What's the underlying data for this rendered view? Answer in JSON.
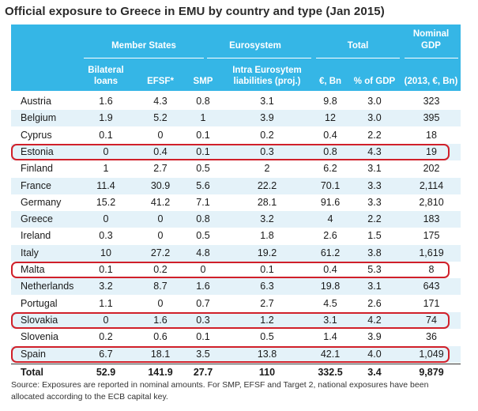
{
  "title": "Official exposure to Greece in EMU by country and type (Jan 2015)",
  "headers": {
    "member_states": "Member States",
    "eurosystem": "Eurosystem",
    "total": "Total",
    "nominal_gdp": "Nominal GDP",
    "bilateral_loans": "Bilateral loans",
    "efsf": "EFSF*",
    "smp": "SMP",
    "intra_eurosystem": "Intra Eurosytem liabilities (proj.)",
    "eur_bn": "€, Bn",
    "pct_gdp": "% of GDP",
    "gdp_2013": "(2013, €, Bn)"
  },
  "rows": [
    {
      "country": "Austria",
      "bilateral": "1.6",
      "efsf": "4.3",
      "smp": "0.8",
      "intra": "3.1",
      "eur_bn": "9.8",
      "pct_gdp": "3.0",
      "gdp": "323",
      "highlighted": false
    },
    {
      "country": "Belgium",
      "bilateral": "1.9",
      "efsf": "5.2",
      "smp": "1",
      "intra": "3.9",
      "eur_bn": "12",
      "pct_gdp": "3.0",
      "gdp": "395",
      "highlighted": false
    },
    {
      "country": "Cyprus",
      "bilateral": "0.1",
      "efsf": "0",
      "smp": "0.1",
      "intra": "0.2",
      "eur_bn": "0.4",
      "pct_gdp": "2.2",
      "gdp": "18",
      "highlighted": false
    },
    {
      "country": "Estonia",
      "bilateral": "0",
      "efsf": "0.4",
      "smp": "0.1",
      "intra": "0.3",
      "eur_bn": "0.8",
      "pct_gdp": "4.3",
      "gdp": "19",
      "highlighted": true
    },
    {
      "country": "Finland",
      "bilateral": "1",
      "efsf": "2.7",
      "smp": "0.5",
      "intra": "2",
      "eur_bn": "6.2",
      "pct_gdp": "3.1",
      "gdp": "202",
      "highlighted": false
    },
    {
      "country": "France",
      "bilateral": "11.4",
      "efsf": "30.9",
      "smp": "5.6",
      "intra": "22.2",
      "eur_bn": "70.1",
      "pct_gdp": "3.3",
      "gdp": "2,114",
      "highlighted": false
    },
    {
      "country": "Germany",
      "bilateral": "15.2",
      "efsf": "41.2",
      "smp": "7.1",
      "intra": "28.1",
      "eur_bn": "91.6",
      "pct_gdp": "3.3",
      "gdp": "2,810",
      "highlighted": false
    },
    {
      "country": "Greece",
      "bilateral": "0",
      "efsf": "0",
      "smp": "0.8",
      "intra": "3.2",
      "eur_bn": "4",
      "pct_gdp": "2.2",
      "gdp": "183",
      "highlighted": false
    },
    {
      "country": "Ireland",
      "bilateral": "0.3",
      "efsf": "0",
      "smp": "0.5",
      "intra": "1.8",
      "eur_bn": "2.6",
      "pct_gdp": "1.5",
      "gdp": "175",
      "highlighted": false
    },
    {
      "country": "Italy",
      "bilateral": "10",
      "efsf": "27.2",
      "smp": "4.8",
      "intra": "19.2",
      "eur_bn": "61.2",
      "pct_gdp": "3.8",
      "gdp": "1,619",
      "highlighted": false
    },
    {
      "country": "Malta",
      "bilateral": "0.1",
      "efsf": "0.2",
      "smp": "0",
      "intra": "0.1",
      "eur_bn": "0.4",
      "pct_gdp": "5.3",
      "gdp": "8",
      "highlighted": true
    },
    {
      "country": "Netherlands",
      "bilateral": "3.2",
      "efsf": "8.7",
      "smp": "1.6",
      "intra": "6.3",
      "eur_bn": "19.8",
      "pct_gdp": "3.1",
      "gdp": "643",
      "highlighted": false
    },
    {
      "country": "Portugal",
      "bilateral": "1.1",
      "efsf": "0",
      "smp": "0.7",
      "intra": "2.7",
      "eur_bn": "4.5",
      "pct_gdp": "2.6",
      "gdp": "171",
      "highlighted": false
    },
    {
      "country": "Slovakia",
      "bilateral": "0",
      "efsf": "1.6",
      "smp": "0.3",
      "intra": "1.2",
      "eur_bn": "3.1",
      "pct_gdp": "4.2",
      "gdp": "74",
      "highlighted": true
    },
    {
      "country": "Slovenia",
      "bilateral": "0.2",
      "efsf": "0.6",
      "smp": "0.1",
      "intra": "0.5",
      "eur_bn": "1.4",
      "pct_gdp": "3.9",
      "gdp": "36",
      "highlighted": false
    },
    {
      "country": "Spain",
      "bilateral": "6.7",
      "efsf": "18.1",
      "smp": "3.5",
      "intra": "13.8",
      "eur_bn": "42.1",
      "pct_gdp": "4.0",
      "gdp": "1,049",
      "highlighted": true
    }
  ],
  "total": {
    "country": "Total",
    "bilateral": "52.9",
    "efsf": "141.9",
    "smp": "27.7",
    "intra": "110",
    "eur_bn": "332.5",
    "pct_gdp": "3.4",
    "gdp": "9,879"
  },
  "source_line1": "Source:   Exposures are reported in nominal amounts. For SMP, EFSF and Target 2, national exposures have been",
  "source_line2": "allocated according to the ECB capital key.",
  "colors": {
    "header_bg": "#35b6e6",
    "alt_row": "#e4f2f9",
    "highlight": "#d0202a"
  }
}
